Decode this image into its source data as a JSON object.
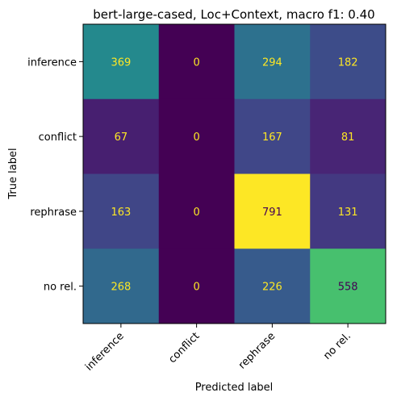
{
  "chart_data": {
    "type": "heatmap",
    "title": "bert-large-cased, Loc+Context, macro f1: 0.40",
    "xlabel": "Predicted label",
    "ylabel": "True label",
    "x_categories": [
      "inference",
      "conflict",
      "rephrase",
      "no rel."
    ],
    "y_categories": [
      "inference",
      "conflict",
      "rephrase",
      "no rel."
    ],
    "values": [
      [
        369,
        0,
        294,
        182
      ],
      [
        67,
        0,
        167,
        81
      ],
      [
        163,
        0,
        791,
        131
      ],
      [
        268,
        0,
        226,
        558
      ]
    ],
    "vmin": 0,
    "vmax": 791,
    "colormap": "viridis",
    "colorbar": false,
    "grid": false
  }
}
